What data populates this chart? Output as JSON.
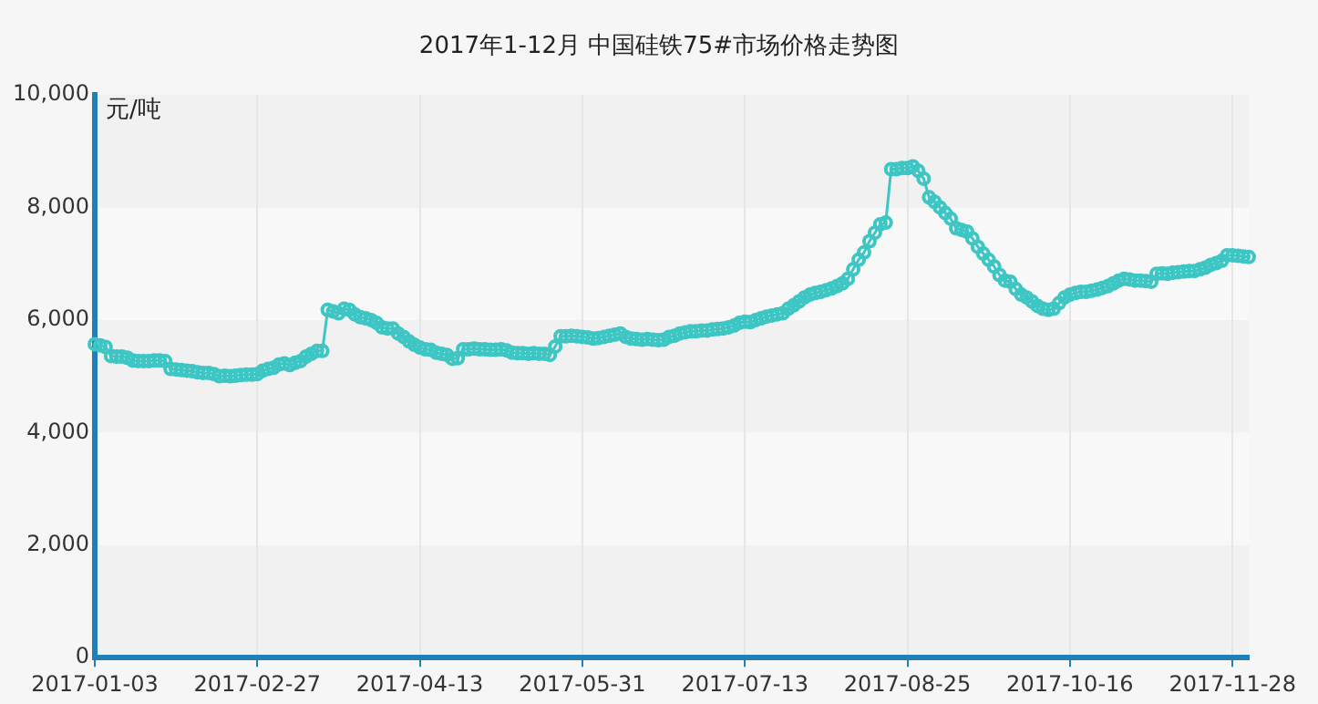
{
  "chart_data": {
    "type": "line",
    "title": "2017年1-12月 中国硅铁75#市场价格走势图",
    "ylabel": "元/吨",
    "categories": [
      "2017-01-03",
      null,
      null,
      null,
      null,
      null,
      null,
      null,
      null,
      null,
      null,
      null,
      null,
      null,
      null,
      null,
      null,
      null,
      null,
      null,
      null,
      null,
      null,
      null,
      null,
      null,
      null,
      null,
      null,
      null,
      "2017-02-27",
      null,
      null,
      null,
      null,
      null,
      null,
      null,
      null,
      null,
      null,
      null,
      null,
      null,
      null,
      null,
      null,
      null,
      null,
      null,
      null,
      null,
      null,
      null,
      null,
      null,
      null,
      null,
      null,
      null,
      "2017-04-13",
      null,
      null,
      null,
      null,
      null,
      null,
      null,
      null,
      null,
      null,
      null,
      null,
      null,
      null,
      null,
      null,
      null,
      null,
      null,
      null,
      null,
      null,
      null,
      null,
      null,
      null,
      null,
      null,
      null,
      "2017-05-31",
      null,
      null,
      null,
      null,
      null,
      null,
      null,
      null,
      null,
      null,
      null,
      null,
      null,
      null,
      null,
      null,
      null,
      null,
      null,
      null,
      null,
      null,
      null,
      null,
      null,
      null,
      null,
      null,
      null,
      "2017-07-13",
      null,
      null,
      null,
      null,
      null,
      null,
      null,
      null,
      null,
      null,
      null,
      null,
      null,
      null,
      null,
      null,
      null,
      null,
      null,
      null,
      null,
      null,
      null,
      null,
      null,
      null,
      null,
      null,
      null,
      "2017-08-25",
      null,
      null,
      null,
      null,
      null,
      null,
      null,
      null,
      null,
      null,
      null,
      null,
      null,
      null,
      null,
      null,
      null,
      null,
      null,
      null,
      null,
      null,
      null,
      null,
      null,
      null,
      null,
      null,
      null,
      "2017-10-16",
      null,
      null,
      null,
      null,
      null,
      null,
      null,
      null,
      null,
      null,
      null,
      null,
      null,
      null,
      null,
      null,
      null,
      null,
      null,
      null,
      null,
      null,
      null,
      null,
      null,
      null,
      null,
      null,
      null,
      "2017-11-28",
      null,
      null,
      null
    ],
    "series": [
      {
        "color": "#3dc6c3",
        "values": [
          5570,
          5550,
          5520,
          5360,
          5350,
          5350,
          5330,
          5280,
          5270,
          5270,
          5270,
          5280,
          5280,
          5270,
          5130,
          5120,
          5110,
          5100,
          5090,
          5070,
          5060,
          5060,
          5040,
          5000,
          5010,
          5000,
          5010,
          5020,
          5030,
          5030,
          5040,
          5100,
          5130,
          5150,
          5210,
          5230,
          5200,
          5240,
          5270,
          5350,
          5400,
          5450,
          5450,
          6180,
          6150,
          6120,
          6200,
          6180,
          6100,
          6050,
          6030,
          6000,
          5950,
          5870,
          5850,
          5850,
          5760,
          5700,
          5620,
          5560,
          5510,
          5480,
          5470,
          5420,
          5400,
          5380,
          5310,
          5320,
          5480,
          5480,
          5490,
          5480,
          5480,
          5470,
          5470,
          5480,
          5460,
          5420,
          5410,
          5410,
          5400,
          5410,
          5400,
          5400,
          5380,
          5530,
          5710,
          5710,
          5720,
          5710,
          5700,
          5690,
          5670,
          5680,
          5700,
          5720,
          5740,
          5760,
          5700,
          5670,
          5660,
          5650,
          5660,
          5650,
          5640,
          5650,
          5700,
          5720,
          5760,
          5780,
          5800,
          5800,
          5810,
          5810,
          5830,
          5840,
          5850,
          5870,
          5900,
          5950,
          5970,
          5960,
          6000,
          6030,
          6060,
          6080,
          6100,
          6120,
          6200,
          6260,
          6330,
          6400,
          6450,
          6480,
          6500,
          6530,
          6560,
          6600,
          6650,
          6730,
          6900,
          7070,
          7200,
          7400,
          7550,
          7700,
          7730,
          8680,
          8680,
          8700,
          8700,
          8730,
          8650,
          8510,
          8180,
          8100,
          8000,
          7900,
          7800,
          7630,
          7600,
          7570,
          7450,
          7300,
          7180,
          7070,
          6950,
          6800,
          6700,
          6680,
          6550,
          6450,
          6400,
          6330,
          6250,
          6200,
          6180,
          6200,
          6300,
          6400,
          6450,
          6480,
          6500,
          6500,
          6520,
          6540,
          6570,
          6600,
          6650,
          6700,
          6730,
          6720,
          6700,
          6700,
          6690,
          6680,
          6820,
          6830,
          6820,
          6840,
          6850,
          6860,
          6870,
          6870,
          6900,
          6930,
          6980,
          7010,
          7050,
          7150,
          7150,
          7140,
          7130,
          7120
        ]
      }
    ],
    "ylim": [
      0,
      10000
    ],
    "yticks": [
      0,
      {
        "value": 2000,
        "label": "2,000"
      },
      {
        "value": 4000,
        "label": "4,000"
      },
      {
        "value": 6000,
        "label": "6,000"
      },
      {
        "value": 8000,
        "label": "8,000"
      },
      {
        "value": 10000,
        "label": "10,000"
      }
    ],
    "grid": true,
    "marker": "circle",
    "line_style": "solid"
  }
}
